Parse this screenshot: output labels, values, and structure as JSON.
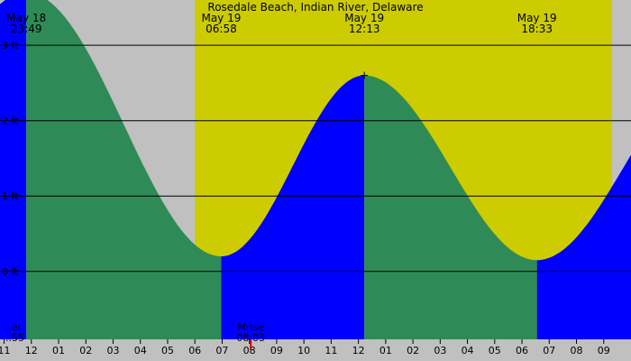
{
  "chart_data": {
    "type": "area",
    "title": "Rosedale Beach, Indian River, Delaware",
    "colors": {
      "night": "#c0c0c0",
      "day": "#cccc00",
      "rising": "#0000ff",
      "falling": "#2e8b57",
      "grid": "#000000"
    },
    "y_unit": "ft",
    "y_ticks": [
      "3 ft",
      "2 ft",
      "1 ft",
      "0 ft"
    ],
    "y_tick_values": [
      3,
      2,
      1,
      0
    ],
    "ylim": [
      -0.9,
      3.6
    ],
    "x_range_hours": [
      -1.15,
      22.0
    ],
    "daylight_hours": [
      6.0,
      21.3
    ],
    "tide_extremes": [
      {
        "date": "May 18",
        "time": "23:49",
        "type": "high",
        "height_ft": 3.7
      },
      {
        "date": "May 19",
        "time": "06:58",
        "type": "low",
        "height_ft": 0.2
      },
      {
        "date": "May 19",
        "time": "12:13",
        "type": "high",
        "height_ft": 2.6
      },
      {
        "date": "May 19",
        "time": "18:33",
        "type": "low",
        "height_ft": 0.15
      }
    ],
    "events": [
      {
        "label": "Mrise",
        "time": "08:03"
      },
      {
        "label": "..et",
        "time": "..55"
      }
    ],
    "x_ticks": [
      "11",
      "12",
      "01",
      "02",
      "03",
      "04",
      "05",
      "06",
      "07",
      "08",
      "09",
      "10",
      "11",
      "12",
      "01",
      "02",
      "03",
      "04",
      "05",
      "06",
      "07",
      "08",
      "09"
    ],
    "x_tick_hours": [
      -1,
      0,
      1,
      2,
      3,
      4,
      5,
      6,
      7,
      8,
      9,
      10,
      11,
      12,
      13,
      14,
      15,
      16,
      17,
      18,
      19,
      20,
      21
    ]
  }
}
